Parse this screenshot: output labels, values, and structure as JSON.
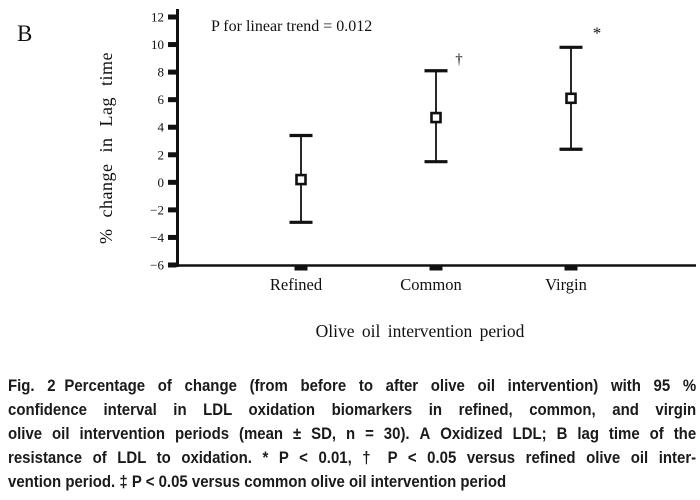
{
  "panel_label": "B",
  "chart_data": {
    "type": "scatter",
    "variant": "mean-with-error-bars",
    "annotation": "P for linear trend = 0.012",
    "categories": [
      "Refined",
      "Common",
      "Virgin"
    ],
    "series": [
      {
        "name": "% change in Lag time (mean with 95% CI)",
        "means": [
          0.2,
          4.7,
          6.1
        ],
        "ci_low": [
          -2.9,
          1.5,
          2.4
        ],
        "ci_high": [
          3.4,
          8.1,
          9.8
        ],
        "sig_symbols": [
          "",
          "†",
          "*"
        ]
      }
    ],
    "xlabel": "Olive oil intervention period",
    "ylabel": "% change in Lag time",
    "ylim": [
      -6,
      12
    ],
    "yticks": [
      12,
      10,
      8,
      6,
      4,
      2,
      0,
      -2,
      -4,
      -6
    ],
    "ytick_labels": [
      "12",
      "10",
      "8",
      "6",
      "4",
      "2",
      "0",
      "−2",
      "−4",
      "−6"
    ],
    "grid": false,
    "legend_position": "none",
    "marker": "square",
    "ink_color": "#111111",
    "background": "#ffffff"
  },
  "caption": {
    "lines": [
      {
        "segments": [
          {
            "text": "Fig. 2",
            "strong": true,
            "gap_after": true
          },
          {
            "text": "Percentage of change (from before to after olive oil intervention) with 95 %",
            "strong": false
          }
        ]
      },
      {
        "segments": [
          {
            "text": "confidence interval in LDL oxidation biomarkers in refined, common, and virgin",
            "strong": false
          }
        ]
      },
      {
        "segments": [
          {
            "text": "olive oil intervention periods (mean ± SD, n = 30). ",
            "strong": false
          },
          {
            "text": "A",
            "strong": true
          },
          {
            "text": " Oxidized LDL; ",
            "strong": false
          },
          {
            "text": "B",
            "strong": true
          },
          {
            "text": " lag time of the",
            "strong": false
          }
        ]
      },
      {
        "segments": [
          {
            "text": "resistance of LDL to oxidation. * P < 0.01, † P < 0.05 versus refined olive oil inter-",
            "strong": false
          }
        ]
      },
      {
        "segments": [
          {
            "text": "vention period. ‡ P < 0.05 versus common olive oil intervention period",
            "strong": false
          }
        ]
      }
    ]
  }
}
